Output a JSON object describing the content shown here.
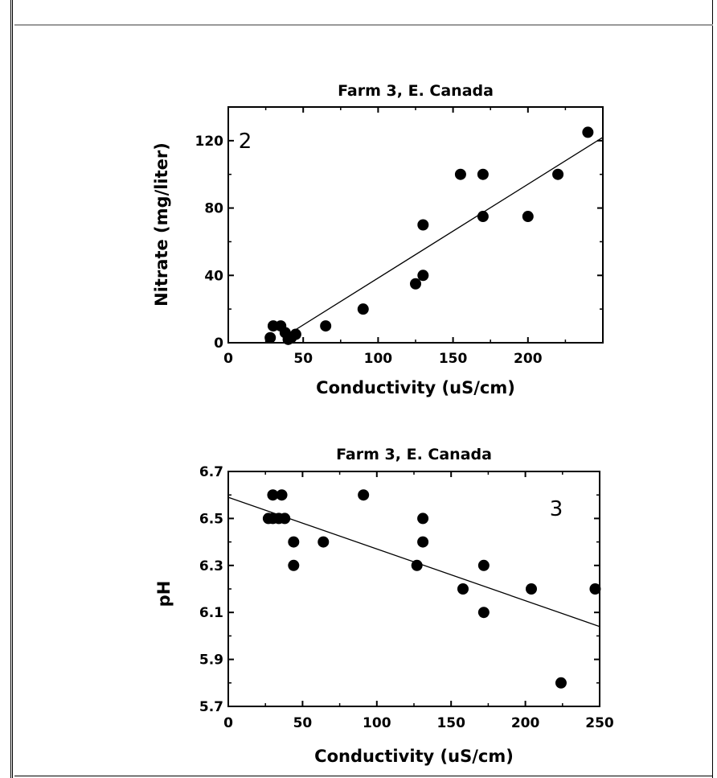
{
  "chart_data": [
    {
      "type": "scatter",
      "panel_label": "2",
      "title": "Farm 3, E. Canada",
      "xlabel": "Conductivity (uS/cm)",
      "ylabel": "Nitrate (mg/liter)",
      "xlim": [
        0,
        250
      ],
      "ylim": [
        0,
        140
      ],
      "xticks": [
        "0",
        "50",
        "100",
        "150",
        "200"
      ],
      "yticks": [
        "0",
        "40",
        "80",
        "120"
      ],
      "x": [
        28,
        30,
        35,
        38,
        40,
        42,
        45,
        65,
        90,
        125,
        130,
        130,
        155,
        170,
        170,
        200,
        220,
        240
      ],
      "y": [
        3,
        10,
        10,
        6,
        2,
        3,
        5,
        10,
        20,
        35,
        40,
        70,
        100,
        100,
        75,
        75,
        100,
        125
      ],
      "trendline": [
        [
          40,
          5
        ],
        [
          250,
          122
        ]
      ]
    },
    {
      "type": "scatter",
      "panel_label": "3",
      "title": "Farm 3, E. Canada",
      "xlabel": "Conductivity (uS/cm)",
      "ylabel": "pH",
      "xlim": [
        0,
        250
      ],
      "ylim": [
        5.7,
        6.7
      ],
      "xticks": [
        "0",
        "50",
        "100",
        "150",
        "200",
        "250"
      ],
      "yticks": [
        "5.7",
        "5.9",
        "6.1",
        "6.3",
        "6.5",
        "6.7"
      ],
      "x": [
        27,
        30,
        30,
        34,
        36,
        38,
        44,
        44,
        64,
        91,
        127,
        131,
        131,
        158,
        172,
        172,
        204,
        224,
        247
      ],
      "y": [
        6.5,
        6.6,
        6.5,
        6.5,
        6.6,
        6.5,
        6.4,
        6.3,
        6.4,
        6.6,
        6.3,
        6.5,
        6.4,
        6.2,
        6.3,
        6.1,
        6.2,
        5.8,
        6.2
      ],
      "trendline": [
        [
          0,
          6.59
        ],
        [
          250,
          6.04
        ]
      ]
    }
  ]
}
